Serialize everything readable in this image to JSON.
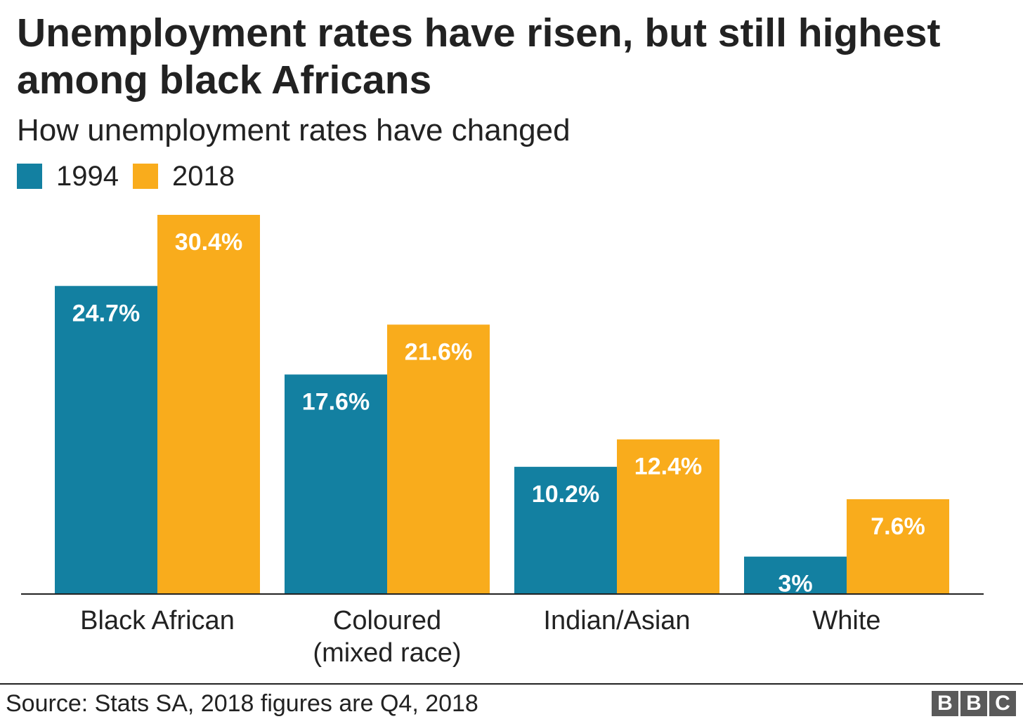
{
  "header": {
    "title": "Unemployment rates have risen, but still highest among black Africans",
    "subtitle": "How unemployment rates have changed"
  },
  "legend": [
    {
      "label": "1994",
      "color": "#1380a1"
    },
    {
      "label": "2018",
      "color": "#f9ac1c"
    }
  ],
  "chart_data": {
    "type": "bar",
    "title": "Unemployment rates have risen, but still highest among black Africans",
    "subtitle": "How unemployment rates have changed",
    "categories": [
      [
        "Black African"
      ],
      [
        "Coloured",
        "(mixed race)"
      ],
      [
        "Indian/Asian"
      ],
      [
        "White"
      ]
    ],
    "series": [
      {
        "name": "1994",
        "color": "#1380a1",
        "values": [
          24.7,
          17.6,
          10.2,
          3
        ],
        "labels": [
          "24.7%",
          "17.6%",
          "10.2%",
          "3%"
        ]
      },
      {
        "name": "2018",
        "color": "#f9ac1c",
        "values": [
          30.4,
          21.6,
          12.4,
          7.6
        ],
        "labels": [
          "30.4%",
          "21.6%",
          "12.4%",
          "7.6%"
        ]
      }
    ],
    "xlabel": "",
    "ylabel": "",
    "ylim": [
      0,
      30.4
    ],
    "grid": false,
    "legend_position": "top-left"
  },
  "footer": {
    "source": "Source: Stats SA, 2018 figures are Q4, 2018",
    "logo_letters": [
      "B",
      "B",
      "C"
    ]
  }
}
